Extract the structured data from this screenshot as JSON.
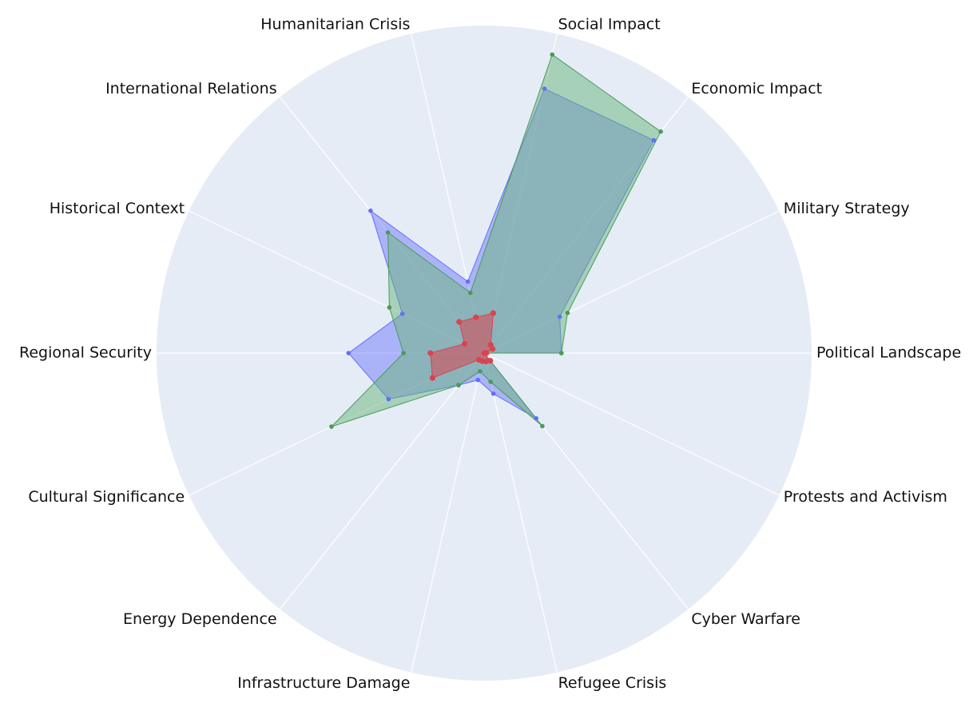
{
  "chart_data": {
    "type": "radar",
    "categories": [
      "Political Landscape",
      "Military Strategy",
      "Economic Impact",
      "Social Impact",
      "Humanitarian Crisis",
      "International Relations",
      "Historical Context",
      "Regional Security",
      "Cultural Significance",
      "Energy Dependence",
      "Infrastructure Damage",
      "Refugee Crisis",
      "Cyber Warfare",
      "Protests and Activism"
    ],
    "rmax": 100,
    "legend": "none",
    "grid": true,
    "series": [
      {
        "color": "#636efa",
        "fill": "rgba(99,110,250,0.45)",
        "values": [
          23.6,
          25.6,
          83.1,
          82.8,
          22.4,
          55.6,
          27.7,
          41.4,
          32.4,
          12.5,
          8.4,
          12.7,
          25.5,
          0
        ]
      },
      {
        "color": "#4a9a58",
        "fill": "rgba(106,180,124,0.5)",
        "values": [
          23.6,
          28.3,
          86.5,
          93.5,
          18.9,
          47.1,
          32.1,
          24.6,
          51.7,
          12.5,
          5.7,
          9.0,
          28.5,
          0
        ]
      },
      {
        "color": "#d94450",
        "fill": "rgba(217,68,80,0.55)",
        "values": [
          0.7,
          2.9,
          3.2,
          12.5,
          11.2,
          12.2,
          6.6,
          16.4,
          17.5,
          2.6,
          2.5,
          2.6,
          3.0,
          0
        ]
      }
    ]
  }
}
